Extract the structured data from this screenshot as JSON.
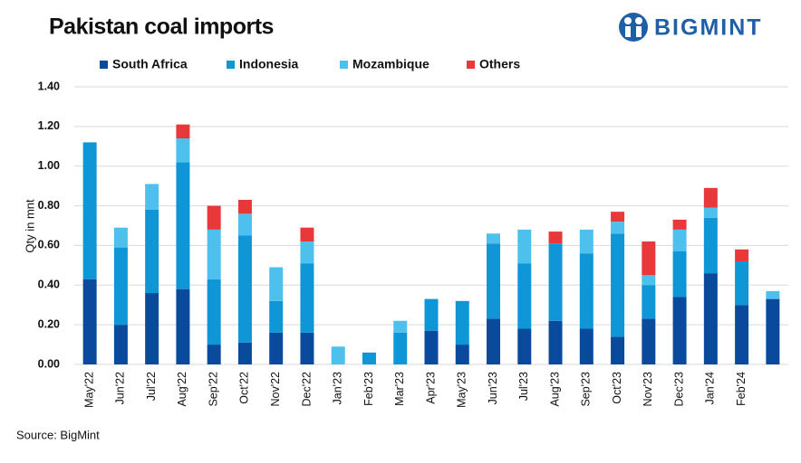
{
  "chart_data": {
    "type": "stacked_bar",
    "title": "Pakistan coal imports",
    "brand": "BIGMINT",
    "source": "Source: BigMint",
    "ylabel": "Qty in mnt",
    "categories": [
      "May'22",
      "Jun'22",
      "Jul'22",
      "Aug'22",
      "Sep'22",
      "Oct'22",
      "Nov'22",
      "Dec'22",
      "Jan'23",
      "Feb'23",
      "Mar'23",
      "Apr'23",
      "May'23",
      "Jun'23",
      "Jul'23",
      "Aug'23",
      "Sep'23",
      "Oct'23",
      "Nov'23",
      "Dec'23",
      "Jan'24",
      "Feb'24",
      null
    ],
    "series": [
      {
        "name": "South Africa",
        "color": "#0a4a9c",
        "values": [
          0.43,
          0.2,
          0.36,
          0.38,
          0.1,
          0.11,
          0.16,
          0.16,
          0,
          0,
          0,
          0.17,
          0.1,
          0.23,
          0.18,
          0.22,
          0.18,
          0.14,
          0.23,
          0.34,
          0.46,
          0.3,
          0.33
        ]
      },
      {
        "name": "Indonesia",
        "color": "#0f96d6",
        "values": [
          0.69,
          0.39,
          0.42,
          0.64,
          0.33,
          0.54,
          0.16,
          0.35,
          0,
          0.06,
          0.16,
          0.16,
          0.22,
          0.38,
          0.33,
          0.39,
          0.38,
          0.52,
          0.17,
          0.23,
          0.28,
          0.22,
          0
        ]
      },
      {
        "name": "Mozambique",
        "color": "#4dc0ee",
        "values": [
          0,
          0.1,
          0.13,
          0.12,
          0.25,
          0.11,
          0.17,
          0.11,
          0.09,
          0,
          0.06,
          0,
          0,
          0.05,
          0.17,
          0,
          0.12,
          0.06,
          0.05,
          0.11,
          0.05,
          0,
          0.04
        ]
      },
      {
        "name": "Others",
        "color": "#e8383a",
        "values": [
          0,
          0,
          0,
          0.07,
          0.12,
          0.07,
          0,
          0.07,
          0,
          0,
          0,
          0,
          0,
          0,
          0,
          0.06,
          0,
          0.05,
          0.17,
          0.05,
          0.1,
          0.06,
          0
        ]
      }
    ],
    "ylim": [
      0,
      1.4
    ],
    "yticks": [
      {
        "value": 0,
        "label": "0.00"
      },
      {
        "value": 0.2,
        "label": "0.20"
      },
      {
        "value": 0.4,
        "label": "0.40"
      },
      {
        "value": 0.6,
        "label": "0.60"
      },
      {
        "value": 0.8,
        "label": "0.80"
      },
      {
        "value": 1.0,
        "label": "1.00"
      },
      {
        "value": 1.2,
        "label": "1.20"
      },
      {
        "value": 1.4,
        "label": "1.40"
      }
    ],
    "grid": true
  }
}
